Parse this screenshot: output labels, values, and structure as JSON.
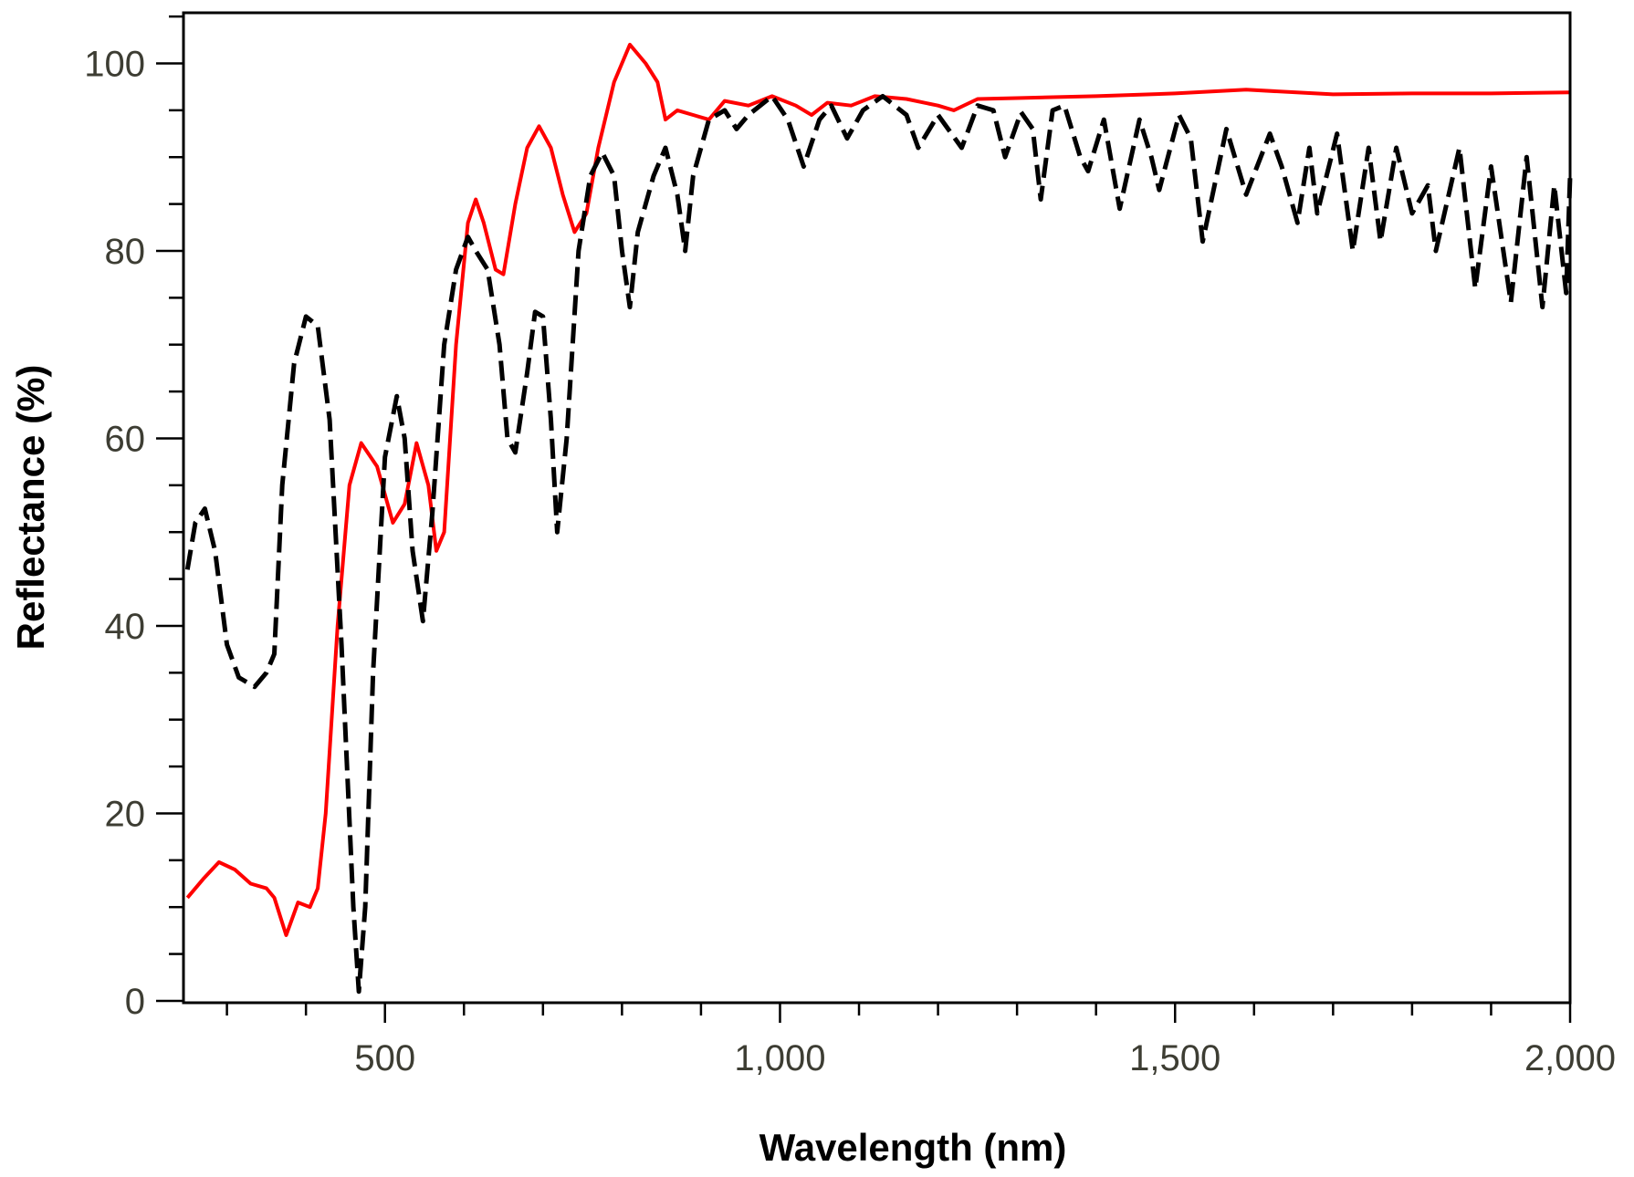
{
  "chart_data": {
    "type": "line",
    "title": "",
    "xlabel": "Wavelength (nm)",
    "ylabel": "Reflectance (%)",
    "xlim": [
      245,
      2000
    ],
    "ylim": [
      -0.2,
      105.4
    ],
    "grid": false,
    "legend": "none",
    "x_ticks": [
      500,
      1000,
      1500,
      2000
    ],
    "x_tick_labels": [
      "500",
      "1,000",
      "1,500",
      "2,000"
    ],
    "x_minor_step": 100,
    "y_ticks": [
      0,
      20,
      40,
      60,
      80,
      100
    ],
    "y_tick_labels": [
      "0",
      "20",
      "40",
      "60",
      "80",
      "100"
    ],
    "y_minor_step": 5,
    "series": [
      {
        "name": "red-solid",
        "color": "#ff0000",
        "style": "solid",
        "x": [
          250,
          270,
          290,
          310,
          330,
          350,
          360,
          375,
          390,
          405,
          415,
          425,
          440,
          455,
          470,
          490,
          510,
          525,
          540,
          555,
          565,
          575,
          590,
          605,
          615,
          625,
          640,
          650,
          665,
          680,
          695,
          710,
          725,
          740,
          755,
          770,
          790,
          810,
          830,
          845,
          855,
          870,
          890,
          910,
          930,
          960,
          990,
          1020,
          1040,
          1060,
          1090,
          1120,
          1160,
          1200,
          1220,
          1250,
          1300,
          1400,
          1500,
          1590,
          1700,
          1800,
          1900,
          2000
        ],
        "y": [
          11,
          13,
          14.8,
          14,
          12.5,
          12,
          11,
          7,
          10.5,
          10,
          12,
          20,
          40,
          55,
          59.5,
          57,
          51,
          53,
          59.5,
          55,
          48,
          50,
          70,
          83,
          85.5,
          83,
          78,
          77.5,
          85,
          91,
          93.3,
          91,
          86,
          82,
          84,
          91,
          98,
          102,
          100,
          98,
          94,
          95,
          94.5,
          94,
          96,
          95.5,
          96.5,
          95.5,
          94.5,
          95.8,
          95.5,
          96.5,
          96.2,
          95.5,
          95,
          96.2,
          96.3,
          96.5,
          96.8,
          97.2,
          96.7,
          96.8,
          96.8,
          96.9
        ]
      },
      {
        "name": "black-dashed",
        "color": "#000000",
        "style": "dashed",
        "x": [
          250,
          260,
          272,
          285,
          300,
          315,
          335,
          350,
          360,
          370,
          385,
          400,
          415,
          430,
          445,
          460,
          467,
          475,
          485,
          500,
          515,
          525,
          535,
          548,
          560,
          575,
          590,
          605,
          615,
          630,
          645,
          655,
          665,
          680,
          690,
          700,
          710,
          718,
          730,
          745,
          760,
          775,
          790,
          800,
          810,
          820,
          840,
          855,
          870,
          880,
          890,
          910,
          930,
          945,
          960,
          990,
          1010,
          1030,
          1050,
          1065,
          1085,
          1105,
          1130,
          1160,
          1175,
          1200,
          1230,
          1250,
          1270,
          1285,
          1305,
          1320,
          1330,
          1345,
          1360,
          1380,
          1390,
          1410,
          1430,
          1455,
          1470,
          1480,
          1505,
          1520,
          1535,
          1565,
          1590,
          1620,
          1635,
          1655,
          1670,
          1680,
          1705,
          1725,
          1745,
          1760,
          1780,
          1800,
          1820,
          1830,
          1860,
          1880,
          1900,
          1925,
          1945,
          1965,
          1980,
          1995,
          2000
        ],
        "y": [
          46,
          51,
          52.5,
          48,
          38,
          34.5,
          33.5,
          35,
          37,
          55,
          68,
          73,
          72,
          62,
          38,
          10,
          1,
          10,
          35,
          58,
          64.5,
          60,
          48,
          40.5,
          52,
          70,
          78,
          81.5,
          80,
          78,
          70,
          60,
          58.5,
          67,
          73.5,
          73,
          62,
          50,
          60,
          80,
          88,
          90.5,
          88,
          80,
          74,
          82,
          88,
          91,
          86,
          80,
          88,
          94,
          95,
          93,
          94.5,
          96.5,
          94,
          89,
          94,
          95.5,
          92,
          95,
          96.5,
          94.5,
          91,
          94.5,
          91,
          95.5,
          95,
          90,
          94.8,
          93,
          85.5,
          95,
          95.5,
          90,
          88.5,
          94,
          84.5,
          94,
          90,
          86.5,
          94.5,
          92,
          81,
          93,
          86,
          92.5,
          89,
          83,
          91,
          84,
          92.5,
          80,
          91,
          81,
          91,
          84,
          87,
          80,
          91,
          76,
          89,
          74.5,
          90,
          74,
          87,
          75.5,
          88
        ]
      }
    ]
  }
}
